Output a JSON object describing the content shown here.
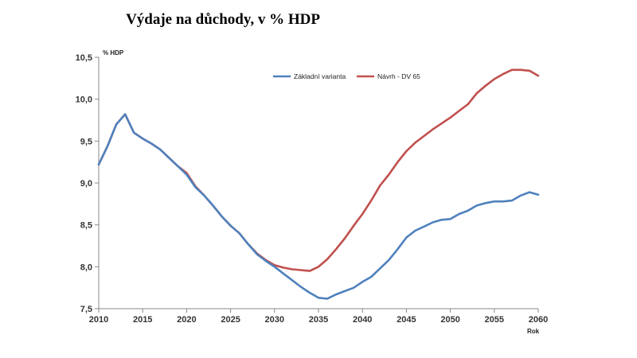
{
  "chart_data": {
    "type": "line",
    "title": "Výdaje na důchody, v % HDP",
    "ylabel": "% HDP",
    "xlabel": "Rok",
    "xlim": [
      2010,
      2060
    ],
    "ylim": [
      7.5,
      10.5
    ],
    "x_ticks": [
      "2010",
      "2015",
      "2020",
      "2025",
      "2030",
      "2035",
      "2040",
      "2045",
      "2050",
      "2055",
      "2060"
    ],
    "y_ticks": [
      "7,5",
      "8,0",
      "8,5",
      "9,0",
      "9,5",
      "10,0",
      "10,5"
    ],
    "legend_position": "top-right",
    "x": [
      2010,
      2011,
      2012,
      2013,
      2014,
      2015,
      2016,
      2017,
      2018,
      2019,
      2020,
      2021,
      2022,
      2023,
      2024,
      2025,
      2026,
      2027,
      2028,
      2029,
      2030,
      2031,
      2032,
      2033,
      2034,
      2035,
      2036,
      2037,
      2038,
      2039,
      2040,
      2041,
      2042,
      2043,
      2044,
      2045,
      2046,
      2047,
      2048,
      2049,
      2050,
      2051,
      2052,
      2053,
      2054,
      2055,
      2056,
      2057,
      2058,
      2059,
      2060
    ],
    "series": [
      {
        "name": "Základní varianta",
        "color": "#4F81BD",
        "values": [
          9.22,
          9.44,
          9.7,
          9.82,
          9.6,
          9.53,
          9.47,
          9.4,
          9.3,
          9.2,
          9.1,
          8.95,
          8.85,
          8.73,
          8.6,
          8.49,
          8.4,
          8.27,
          8.15,
          8.07,
          8.0,
          7.92,
          7.84,
          7.76,
          7.69,
          7.63,
          7.62,
          7.67,
          7.71,
          7.75,
          7.82,
          7.88,
          7.98,
          8.08,
          8.21,
          8.35,
          8.43,
          8.48,
          8.53,
          8.56,
          8.57,
          8.63,
          8.67,
          8.73,
          8.76,
          8.78,
          8.78,
          8.79,
          8.85,
          8.89,
          8.86
        ]
      },
      {
        "name": "Návrh - DV 65",
        "color": "#C0504D",
        "values": [
          9.22,
          9.44,
          9.7,
          9.82,
          9.6,
          9.53,
          9.47,
          9.4,
          9.3,
          9.2,
          9.12,
          8.96,
          8.85,
          8.73,
          8.6,
          8.49,
          8.4,
          8.27,
          8.16,
          8.08,
          8.02,
          7.99,
          7.97,
          7.96,
          7.95,
          8.0,
          8.09,
          8.21,
          8.34,
          8.49,
          8.63,
          8.79,
          8.97,
          9.1,
          9.25,
          9.38,
          9.48,
          9.56,
          9.64,
          9.71,
          9.78,
          9.86,
          9.94,
          10.07,
          10.16,
          10.24,
          10.3,
          10.35,
          10.35,
          10.34,
          10.28
        ]
      }
    ]
  }
}
